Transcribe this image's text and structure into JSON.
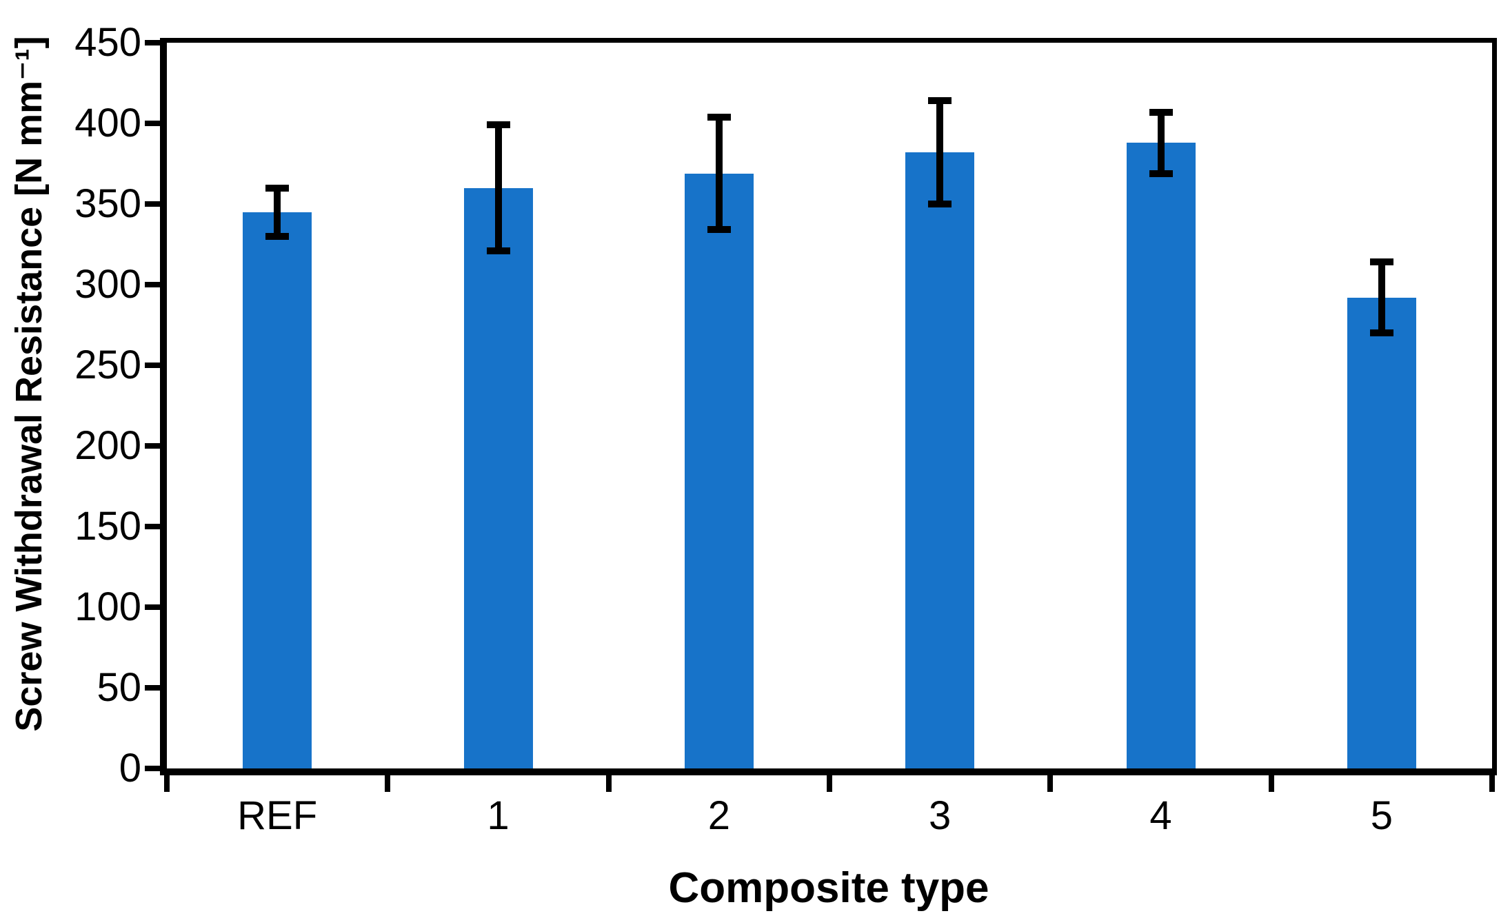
{
  "figure": {
    "background": "#ffffff",
    "frame_color": "#000000"
  },
  "chart_data": {
    "type": "bar",
    "title": "",
    "categories": [
      "REF",
      "1",
      "2",
      "3",
      "4",
      "5"
    ],
    "values": [
      345,
      360,
      369,
      382,
      388,
      292
    ],
    "errors_plus": [
      15,
      39,
      35,
      32,
      19,
      22
    ],
    "errors_minus": [
      15,
      39,
      35,
      32,
      19,
      22
    ],
    "xlabel": "Composite type",
    "ylabel": "Screw Withdrawal Resistance [N mm⁻¹]",
    "ylim": [
      0,
      450
    ],
    "yticks": [
      0,
      50,
      100,
      150,
      200,
      250,
      300,
      350,
      400,
      450
    ],
    "grid": false,
    "legend": "none",
    "frame": "full-box",
    "bar_color": "#1773C9",
    "error_bar_color": "#000000"
  }
}
